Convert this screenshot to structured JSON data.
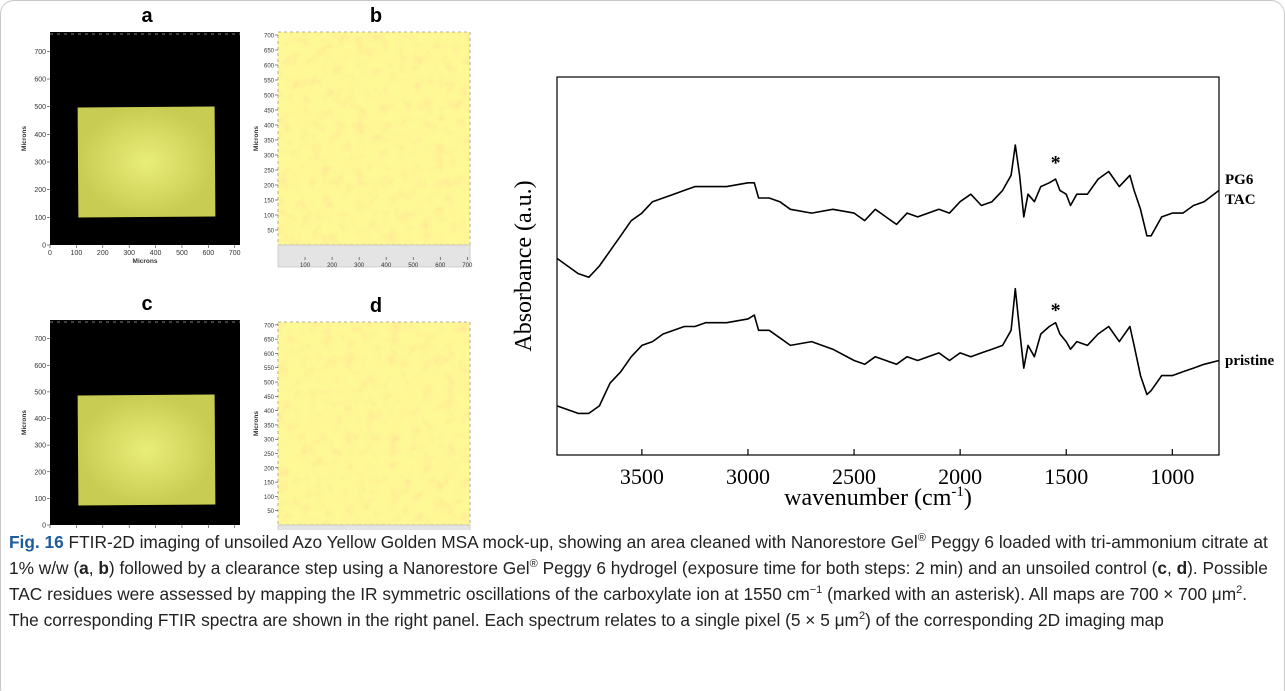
{
  "maps": [
    {
      "label": "a",
      "xlabel": "Microns",
      "ylabel": "Microns",
      "xlim": [
        0,
        720
      ],
      "ylim": [
        0,
        770
      ],
      "xticks": [
        0,
        100,
        200,
        300,
        400,
        500,
        600,
        700
      ],
      "yticks": [
        0,
        100,
        200,
        300,
        400,
        500,
        600,
        700
      ]
    },
    {
      "label": "b",
      "ylabel": "Microns",
      "xlim": [
        0,
        710
      ],
      "ylim": [
        0,
        710
      ],
      "xticks": [
        100,
        200,
        300,
        400,
        500,
        600,
        700
      ],
      "yticks": [
        50,
        100,
        150,
        200,
        250,
        300,
        350,
        400,
        450,
        500,
        550,
        600,
        650,
        700
      ]
    },
    {
      "label": "c",
      "xlabel": "Microns",
      "ylabel": "Microns",
      "xlim": [
        0,
        720
      ],
      "ylim": [
        0,
        770
      ],
      "xticks": [
        0,
        100,
        200,
        300,
        400,
        500,
        600,
        700
      ],
      "yticks": [
        0,
        100,
        200,
        300,
        400,
        500,
        600,
        700
      ]
    },
    {
      "label": "d",
      "ylabel": "Microns",
      "xlim": [
        0,
        710
      ],
      "ylim": [
        0,
        710
      ],
      "xticks": [
        100,
        200,
        300,
        400,
        500,
        600,
        700
      ],
      "yticks": [
        50,
        100,
        150,
        200,
        250,
        300,
        350,
        400,
        450,
        500,
        550,
        600,
        650,
        700
      ]
    }
  ],
  "chart_data": {
    "type": "line",
    "ylabel": "Absorbance (a.u.)",
    "xlabel": [
      "wavenumber (cm",
      "-1",
      ")"
    ],
    "xlim": [
      3900,
      780
    ],
    "ylim": [
      0,
      100
    ],
    "xticks": [
      3500,
      3000,
      2500,
      2000,
      1500,
      1000
    ],
    "x": [
      3900,
      3850,
      3800,
      3750,
      3700,
      3650,
      3600,
      3550,
      3500,
      3450,
      3400,
      3350,
      3300,
      3250,
      3200,
      3100,
      3000,
      2970,
      2950,
      2900,
      2850,
      2800,
      2700,
      2600,
      2500,
      2450,
      2400,
      2350,
      2300,
      2250,
      2200,
      2100,
      2050,
      2000,
      1950,
      1900,
      1850,
      1800,
      1760,
      1740,
      1720,
      1700,
      1680,
      1650,
      1620,
      1580,
      1550,
      1530,
      1500,
      1480,
      1450,
      1400,
      1350,
      1300,
      1250,
      1200,
      1180,
      1150,
      1120,
      1100,
      1050,
      1000,
      950,
      900,
      850,
      780
    ],
    "series": [
      {
        "name": "PG6 TAC",
        "color": "#000000",
        "values": [
          52,
          50,
          48,
          47,
          50,
          54,
          58,
          62,
          64,
          67,
          68,
          69,
          70,
          71,
          71,
          71,
          72,
          72,
          68,
          68,
          67,
          65,
          64,
          65,
          64,
          62,
          65,
          63,
          61,
          64,
          63,
          65,
          64,
          67,
          69,
          66,
          67,
          70,
          74,
          82,
          74,
          63,
          69,
          67,
          71,
          72,
          73,
          70,
          69,
          66,
          69,
          69,
          73,
          75,
          71,
          74,
          70,
          65,
          58,
          58,
          63,
          64,
          64,
          66,
          67,
          70
        ]
      },
      {
        "name": "pristine",
        "color": "#000000",
        "values": [
          13,
          12,
          11,
          11,
          13,
          19,
          22,
          26,
          29,
          30,
          32,
          33,
          34,
          34,
          35,
          35,
          36,
          37,
          33,
          33,
          31,
          29,
          30,
          28,
          25,
          24,
          26,
          25,
          24,
          26,
          25,
          27,
          25,
          27,
          26,
          27,
          28,
          29,
          33,
          44,
          33,
          23,
          29,
          26,
          32,
          34,
          35,
          32,
          30,
          28,
          30,
          29,
          32,
          34,
          30,
          34,
          29,
          21,
          16,
          17,
          21,
          21,
          22,
          23,
          24,
          25
        ]
      }
    ],
    "annotations": [
      {
        "text": "*",
        "x": 1550,
        "y": 78
      },
      {
        "text": "*",
        "x": 1550,
        "y": 39
      }
    ]
  },
  "caption": {
    "parts": [
      "Fig. 16",
      " FTIR-2D imaging of unsoiled Azo Yellow Golden MSA mock-up, showing an area cleaned with Nanorestore Gel",
      "®",
      " Peggy 6 loaded with tri-ammonium citrate at 1% w/w (",
      "a",
      ", ",
      "b",
      ") followed by a clearance step using a Nanorestore Gel",
      "®",
      " Peggy 6 hydrogel (exposure time for both steps: 2 min) and an unsoiled control (",
      "c",
      ", ",
      "d",
      "). Possible TAC residues were assessed by mapping the IR symmetric oscillations of the carboxylate ion at 1550 cm",
      "−1",
      " (marked with an asterisk). All maps are 700 × 700 μm",
      "2",
      ". The corresponding FTIR spectra are shown in the right panel. Each spectrum relates to a single pixel (5 × 5 μm",
      "2",
      ") of the corresponding 2D imaging map"
    ]
  }
}
